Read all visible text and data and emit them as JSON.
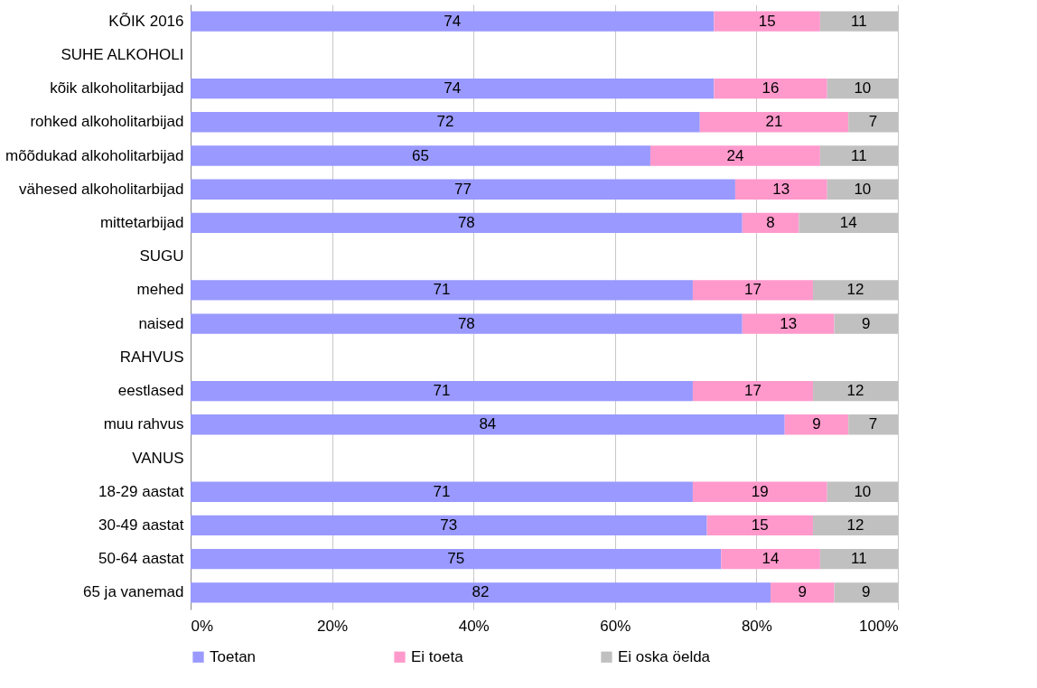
{
  "chart_data": {
    "type": "bar",
    "orientation": "horizontal",
    "stacked": true,
    "data_labels": true,
    "grid": "x",
    "legend": "bottom",
    "categories": [
      "KÕIK 2016",
      "SUHE ALKOHOLI",
      "kõik alkoholitarbijad",
      "rohked alkoholitarbijad",
      "mõõdukad alkoholitarbijad",
      "vähesed alkoholitarbijad",
      "mittetarbijad",
      "SUGU",
      "mehed",
      "naised",
      "RAHVUS",
      "eestlased",
      "muu rahvus",
      "VANUS",
      "18-29 aastat",
      "30-49 aastat",
      "50-64 aastat",
      "65 ja vanemad"
    ],
    "series": [
      {
        "name": "Toetan",
        "color": "#9999ff",
        "values": [
          74,
          null,
          74,
          72,
          65,
          77,
          78,
          null,
          71,
          78,
          null,
          71,
          84,
          null,
          71,
          73,
          75,
          82
        ]
      },
      {
        "name": "Ei toeta",
        "color": "#ff99cc",
        "values": [
          15,
          null,
          16,
          21,
          24,
          13,
          8,
          null,
          17,
          13,
          null,
          17,
          9,
          null,
          19,
          15,
          14,
          9
        ]
      },
      {
        "name": "Ei oska öelda",
        "color": "#c0c0c0",
        "values": [
          11,
          null,
          10,
          7,
          11,
          10,
          14,
          null,
          12,
          9,
          null,
          12,
          7,
          null,
          10,
          12,
          11,
          9
        ]
      }
    ],
    "xlim": [
      0,
      100
    ],
    "xticks": [
      {
        "value": 0,
        "label": "0%"
      },
      {
        "value": 20,
        "label": "20%"
      },
      {
        "value": 40,
        "label": "40%"
      },
      {
        "value": 60,
        "label": "60%"
      },
      {
        "value": 80,
        "label": "80%"
      },
      {
        "value": 100,
        "label": "100%"
      }
    ]
  }
}
